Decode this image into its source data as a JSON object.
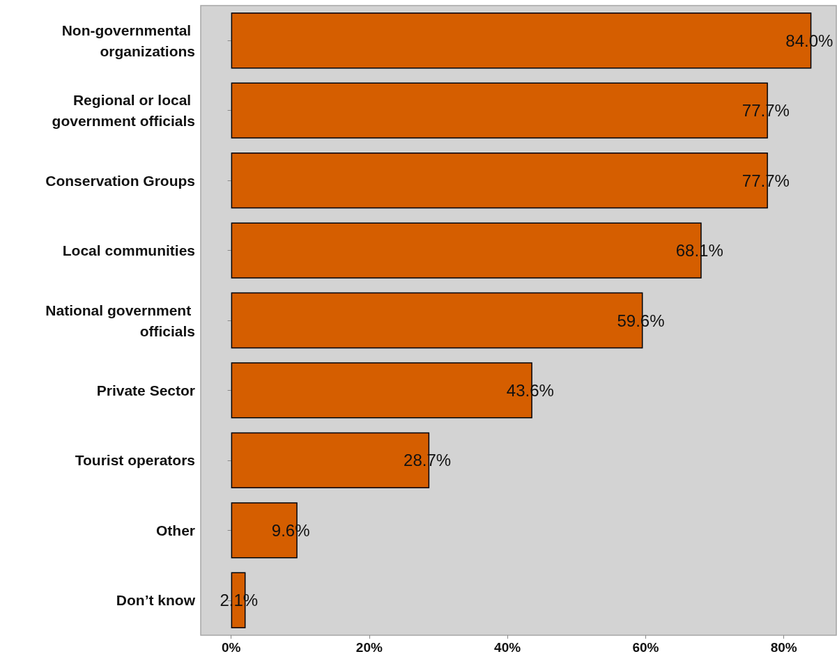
{
  "chart_data": {
    "type": "bar",
    "orientation": "horizontal",
    "categories": [
      "Non-governmental organizations",
      "Regional or local government officials",
      "Conservation Groups",
      "Local communities",
      "National government officials",
      "Private Sector",
      "Tourist operators",
      "Other",
      "Don’t know"
    ],
    "values": [
      84.0,
      77.7,
      77.7,
      68.1,
      59.6,
      43.6,
      28.7,
      9.6,
      2.1
    ],
    "value_labels": [
      "84.0%",
      "77.7%",
      "77.7%",
      "68.1%",
      "59.6%",
      "43.6%",
      "28.7%",
      "9.6%",
      "2.1%"
    ],
    "color": "#d55e00",
    "xlim": [
      -4.4,
      87.6
    ],
    "xticks": [
      {
        "value": 0,
        "label": "0%"
      },
      {
        "value": 20,
        "label": "20%"
      },
      {
        "value": 40,
        "label": "40%"
      },
      {
        "value": 60,
        "label": "60%"
      },
      {
        "value": 80,
        "label": "80%"
      }
    ],
    "grid": false
  }
}
